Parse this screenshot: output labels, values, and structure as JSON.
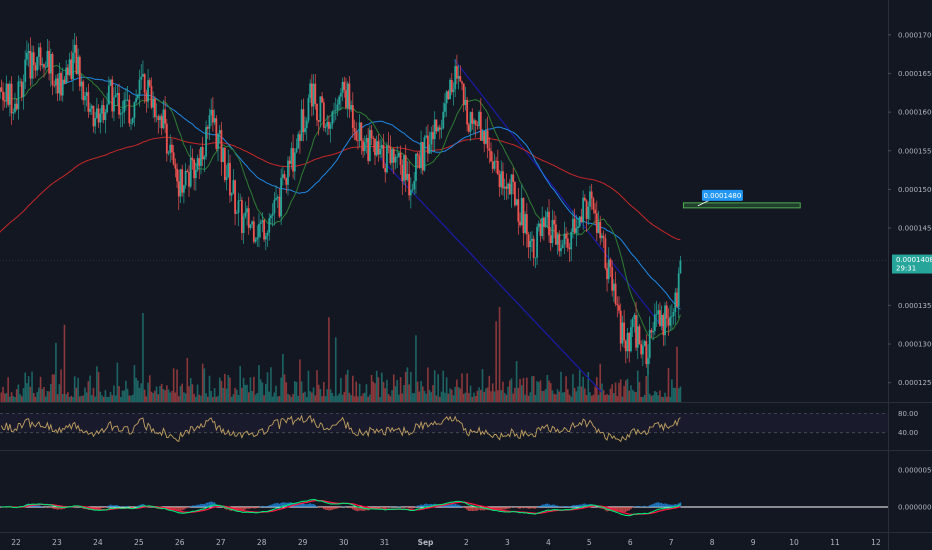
{
  "chart_data": {
    "type": "candlestick",
    "title": "",
    "price_axis": {
      "ticks": [
        "0.0001700",
        "0.0001650",
        "0.0001600",
        "0.0001550",
        "0.0001500",
        "0.0001450",
        "0.0001350",
        "0.0001300",
        "0.0001250"
      ],
      "tick_values": [
        0.00017,
        0.000165,
        0.00016,
        0.000155,
        0.00015,
        0.000145,
        0.000135,
        0.00013,
        0.000125
      ],
      "range": [
        0.0001225,
        0.0001745
      ]
    },
    "current_price": {
      "label": "0.0001408",
      "countdown": "29:31",
      "value": 0.0001408,
      "color": "#26a69a"
    },
    "target_label": {
      "text": "0.0001480",
      "value": 0.000148,
      "color": "#2196f3"
    },
    "rsi": {
      "ticks": [
        "80.00",
        "40.00"
      ],
      "upper": 80,
      "lower": 40
    },
    "macd": {
      "ticks": [
        "0.0000050",
        "0.0000000"
      ]
    },
    "date_labels": [
      "22",
      "23",
      "24",
      "25",
      "26",
      "27",
      "28",
      "29",
      "30",
      "31",
      "Sep",
      "2",
      "3",
      "4",
      "5",
      "6",
      "7",
      "8",
      "9",
      "10",
      "11",
      "12"
    ],
    "key_closes": [
      {
        "day": 22,
        "close": 0.000162
      },
      {
        "day": 22.3,
        "close": 0.000166
      },
      {
        "day": 22.7,
        "close": 0.000168
      },
      {
        "day": 23,
        "close": 0.000163
      },
      {
        "day": 23.4,
        "close": 0.000167
      },
      {
        "day": 23.9,
        "close": 0.000159
      },
      {
        "day": 24.3,
        "close": 0.000162
      },
      {
        "day": 24.8,
        "close": 0.00016
      },
      {
        "day": 25.1,
        "close": 0.000164
      },
      {
        "day": 25.6,
        "close": 0.000159
      },
      {
        "day": 25.9,
        "close": 0.000151
      },
      {
        "day": 26.3,
        "close": 0.000152
      },
      {
        "day": 26.8,
        "close": 0.000159
      },
      {
        "day": 27.1,
        "close": 0.000153
      },
      {
        "day": 27.5,
        "close": 0.000146
      },
      {
        "day": 28,
        "close": 0.000145
      },
      {
        "day": 28.4,
        "close": 0.000148
      },
      {
        "day": 28.8,
        "close": 0.000155
      },
      {
        "day": 29.2,
        "close": 0.000163
      },
      {
        "day": 29.6,
        "close": 0.000158
      },
      {
        "day": 30,
        "close": 0.000163
      },
      {
        "day": 30.4,
        "close": 0.000157
      },
      {
        "day": 30.9,
        "close": 0.000154
      },
      {
        "day": 31.3,
        "close": 0.000155
      },
      {
        "day": 31.6,
        "close": 0.000151
      },
      {
        "day": 32,
        "close": 0.000155
      },
      {
        "day": 32.3,
        "close": 0.000158
      },
      {
        "day": 32.7,
        "close": 0.000165
      },
      {
        "day": 33,
        "close": 0.00016
      },
      {
        "day": 33.4,
        "close": 0.000158
      },
      {
        "day": 33.8,
        "close": 0.000152
      },
      {
        "day": 34.2,
        "close": 0.000149
      },
      {
        "day": 34.6,
        "close": 0.000143
      },
      {
        "day": 35,
        "close": 0.000145
      },
      {
        "day": 35.3,
        "close": 0.000142
      },
      {
        "day": 35.7,
        "close": 0.000145
      },
      {
        "day": 36,
        "close": 0.000149
      },
      {
        "day": 36.3,
        "close": 0.000143
      },
      {
        "day": 36.6,
        "close": 0.000136
      },
      {
        "day": 36.9,
        "close": 0.000129
      },
      {
        "day": 37.1,
        "close": 0.000132
      },
      {
        "day": 37.4,
        "close": 0.000128
      },
      {
        "day": 37.6,
        "close": 0.000133
      },
      {
        "day": 37.9,
        "close": 0.000133
      },
      {
        "day": 38.1,
        "close": 0.000135
      },
      {
        "day": 38.25,
        "close": 0.0001408
      }
    ]
  },
  "colors": {
    "background": "#131722",
    "up": "#26a69a",
    "down": "#ef5350",
    "ma_fast": "#2e7d32",
    "ma_mid": "#1e88e5",
    "ma_slow": "#c62828",
    "channel": "#1a1aa8",
    "target_box": "#4caf50",
    "rsi_line": "#c0a060",
    "macd_line": "#00e676",
    "signal_line": "#ff1744",
    "zero_line": "#ffffff"
  }
}
